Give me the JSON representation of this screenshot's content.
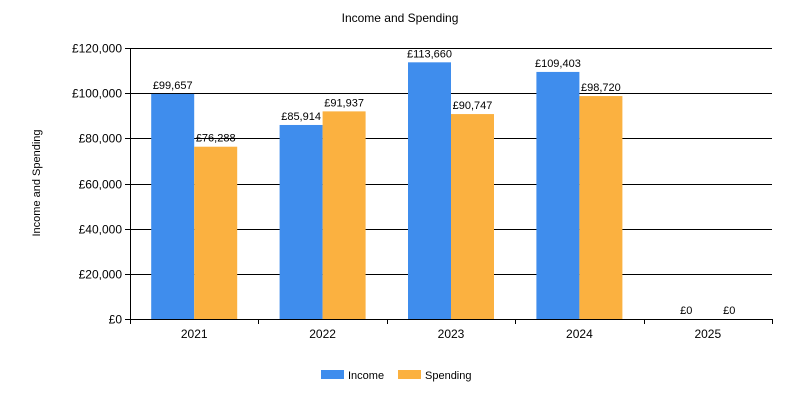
{
  "colors": {
    "background": "#ffffff",
    "income": "#3f8ded",
    "spending": "#fbb140",
    "axis": "#000000",
    "grid": "#000000"
  },
  "chart_data": {
    "type": "bar",
    "title": "Income and Spending",
    "xlabel": "",
    "ylabel": "Income and Spending",
    "categories": [
      "2021",
      "2022",
      "2023",
      "2024",
      "2025"
    ],
    "series": [
      {
        "name": "Income",
        "color": "#3f8ded",
        "values": [
          99657,
          85914,
          113660,
          109403,
          0
        ],
        "labels": [
          "£99,657",
          "£85,914",
          "£113,660",
          "£109,403",
          "£0"
        ]
      },
      {
        "name": "Spending",
        "color": "#fbb140",
        "values": [
          76288,
          91937,
          90747,
          98720,
          0
        ],
        "labels": [
          "£76,288",
          "£91,937",
          "£90,747",
          "£98,720",
          "£0"
        ]
      }
    ],
    "ylim": [
      0,
      120000
    ],
    "yticks": [
      0,
      20000,
      40000,
      60000,
      80000,
      100000,
      120000
    ],
    "ytick_labels": [
      "£0",
      "£20,000",
      "£40,000",
      "£60,000",
      "£80,000",
      "£100,000",
      "£120,000"
    ],
    "grid": true,
    "legend": "bottom-center"
  }
}
